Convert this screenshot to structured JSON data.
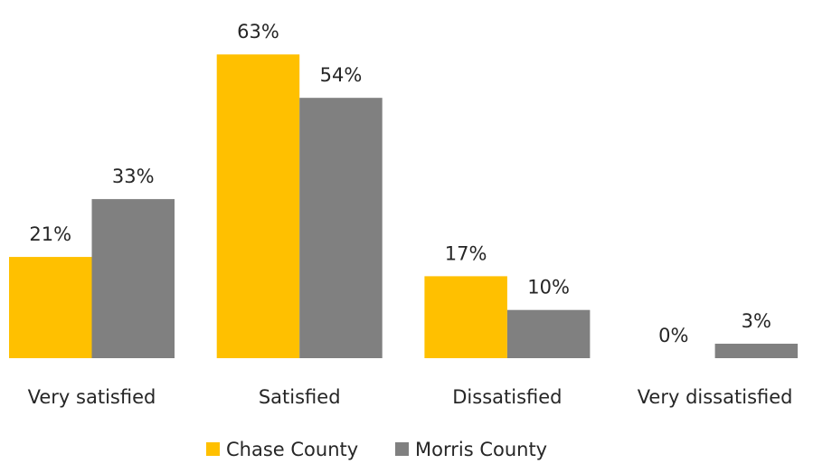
{
  "chart_data": {
    "type": "bar",
    "categories": [
      "Very satisfied",
      "Satisfied",
      "Dissatisfied",
      "Very dissatisfied"
    ],
    "series": [
      {
        "name": "Chase County",
        "color": "#FFC000",
        "values": [
          21,
          63,
          17,
          0
        ],
        "value_labels": [
          "21%",
          "63%",
          "17%",
          "0%"
        ]
      },
      {
        "name": "Morris County",
        "color": "#808080",
        "values": [
          33,
          54,
          10,
          3
        ],
        "value_labels": [
          "33%",
          "54%",
          "10%",
          "3%"
        ]
      }
    ],
    "legend": "bottom"
  }
}
